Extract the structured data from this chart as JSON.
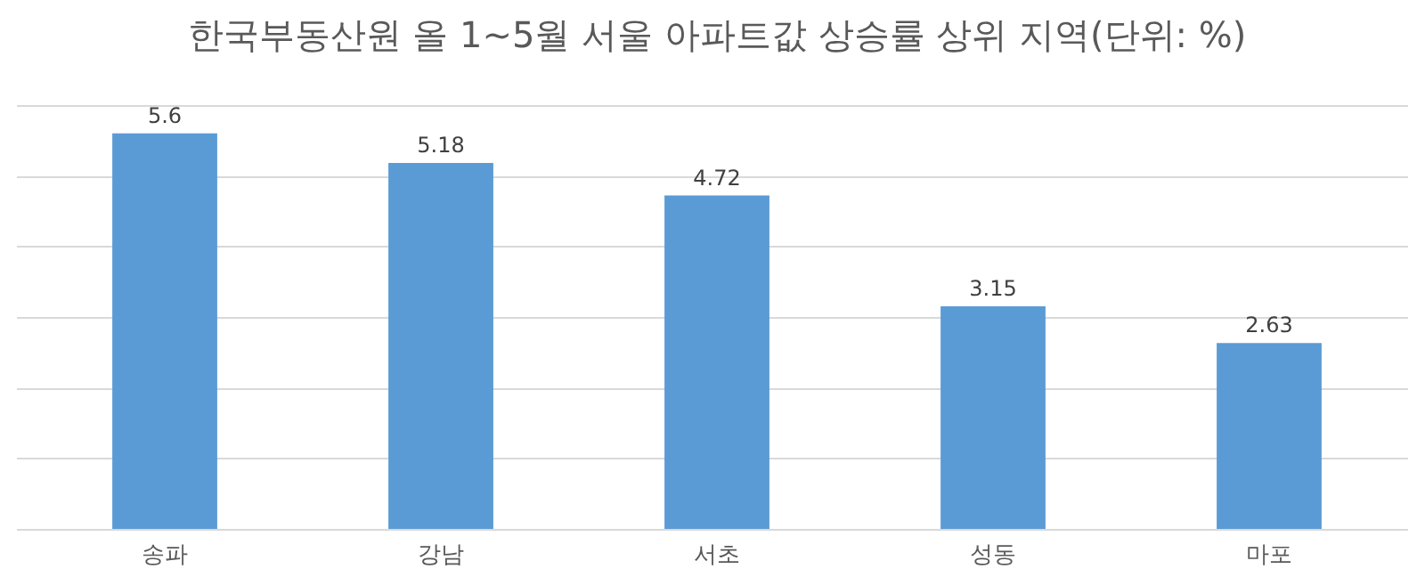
{
  "chart_data": {
    "type": "bar",
    "title": "한국부동산원 올 1~5월 서울 아파트값 상승률 상위 지역(단위: %)",
    "categories": [
      "송파",
      "강남",
      "서초",
      "성동",
      "마포"
    ],
    "values": [
      5.6,
      5.18,
      4.72,
      3.15,
      2.63
    ],
    "color": "#5b9bd5",
    "ylim": [
      0,
      6
    ],
    "yticks": [
      {
        "value": 0,
        "label": null
      },
      {
        "value": 1,
        "label": null
      },
      {
        "value": 2,
        "label": null
      },
      {
        "value": 3,
        "label": null
      },
      {
        "value": 4,
        "label": null
      },
      {
        "value": 5,
        "label": null
      },
      {
        "value": 6,
        "label": null
      }
    ],
    "tick_labels": "x",
    "grid": "y",
    "data_labels": true,
    "legend": false
  }
}
